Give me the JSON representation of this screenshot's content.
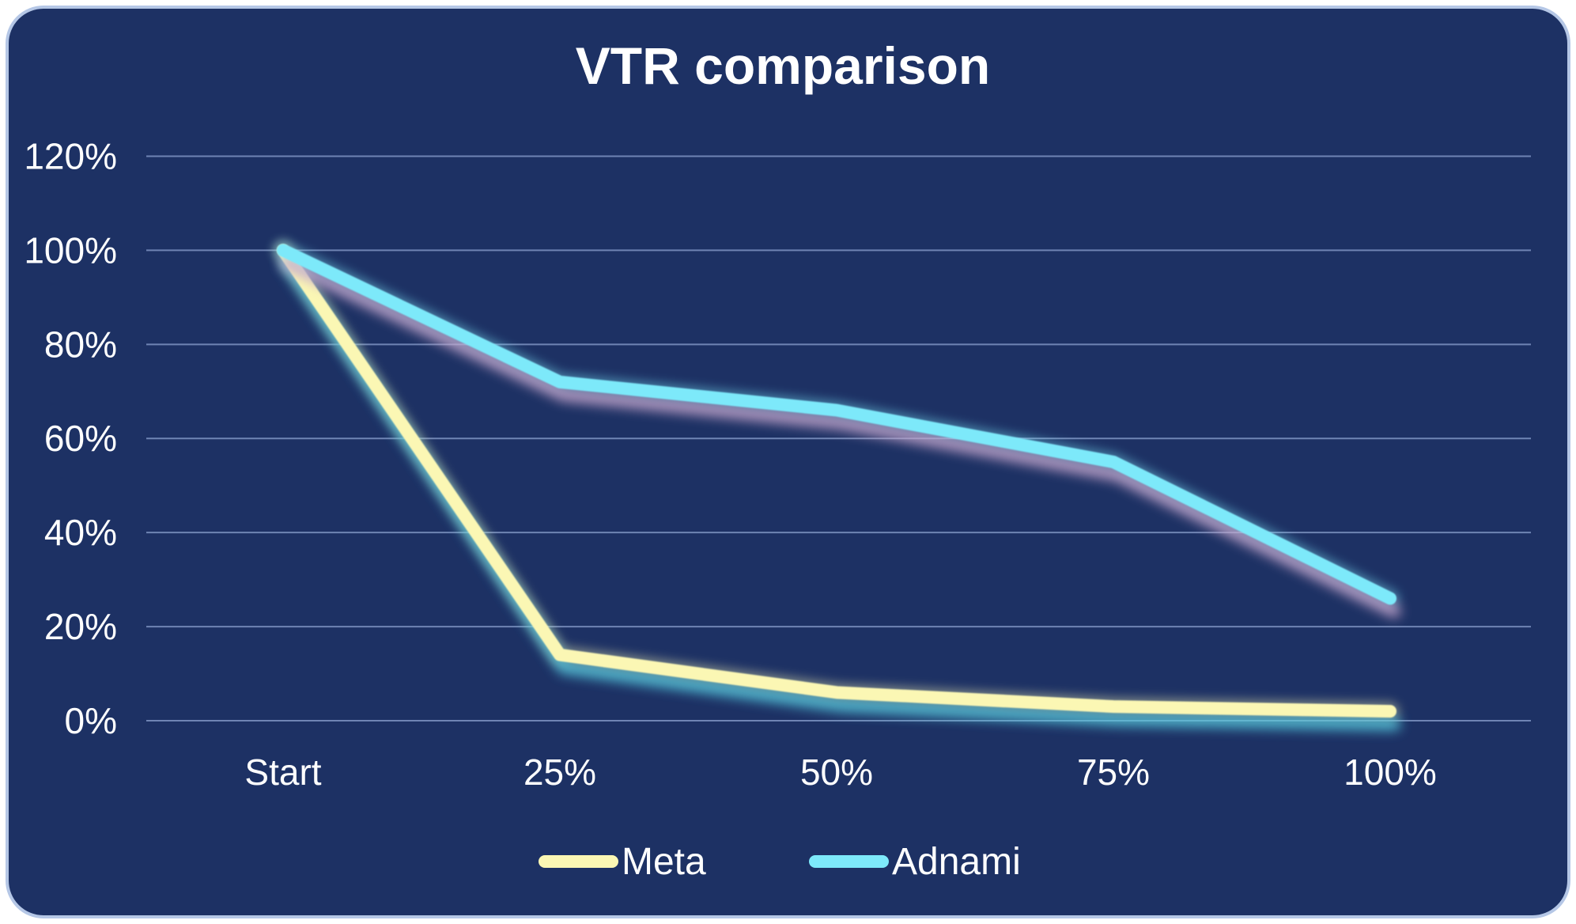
{
  "card": {
    "background": "#1d3164",
    "border_color": "#b5c7e6"
  },
  "chart_data": {
    "type": "line",
    "title": "VTR comparison",
    "xlabel": "",
    "ylabel": "",
    "categories": [
      "Start",
      "25%",
      "50%",
      "75%",
      "100%"
    ],
    "series": [
      {
        "name": "Meta",
        "color": "#fbf7b4",
        "shadow_color": "#55c8de",
        "values": [
          100,
          14,
          6,
          3,
          2
        ]
      },
      {
        "name": "Adnami",
        "color": "#7de9fa",
        "shadow_color": "#c7a5cc",
        "values": [
          100,
          72,
          66,
          55,
          26
        ]
      }
    ],
    "ytick_labels": [
      "120%",
      "100%",
      "80%",
      "60%",
      "40%",
      "20%",
      "0%"
    ],
    "ytick_values": [
      120,
      100,
      80,
      60,
      40,
      20,
      0
    ],
    "ylim": [
      0,
      120
    ],
    "grid": true,
    "gridline_color": "#8499c7",
    "text_color": "#ffffff",
    "legend_position": "bottom"
  }
}
